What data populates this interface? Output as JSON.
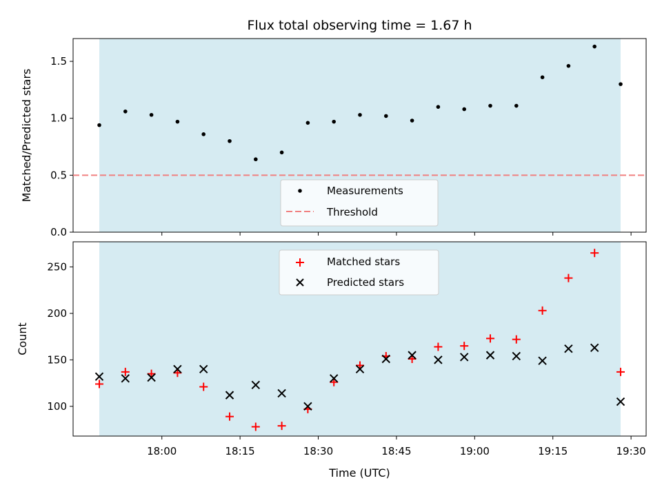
{
  "chart_data": {
    "title": "Flux total observing time = 1.67 h",
    "xlabel": "Time (UTC)",
    "shaded_color": "#add8e6",
    "x_ticks": [
      "18:00",
      "18:15",
      "18:30",
      "18:45",
      "19:00",
      "19:15",
      "19:30"
    ],
    "times": [
      "17:48",
      "17:53",
      "17:58",
      "18:03",
      "18:08",
      "18:13",
      "18:18",
      "18:23",
      "18:28",
      "18:33",
      "18:38",
      "18:43",
      "18:48",
      "18:53",
      "18:58",
      "19:03",
      "19:08",
      "19:13",
      "19:18",
      "19:23",
      "19:28"
    ],
    "panels": [
      {
        "type": "scatter",
        "ylabel": "Matched/Predicted stars",
        "ylim": [
          0,
          1.7
        ],
        "y_ticks": [
          "0.0",
          "0.5",
          "1.0",
          "1.5"
        ],
        "grid": false,
        "legend_position": "bottom-center",
        "series": [
          {
            "name": "Measurements",
            "marker": "dot",
            "color": "#000000",
            "values": [
              0.94,
              1.06,
              1.03,
              0.97,
              0.86,
              0.8,
              0.64,
              0.7,
              0.96,
              0.97,
              1.03,
              1.02,
              0.98,
              1.1,
              1.08,
              1.11,
              1.11,
              1.36,
              1.46,
              1.63,
              1.3
            ]
          }
        ],
        "reference_lines": [
          {
            "name": "Threshold",
            "value": 0.5,
            "style": "dashed",
            "color": "#f08080"
          }
        ]
      },
      {
        "type": "scatter",
        "ylabel": "Count",
        "ylim": [
          68,
          277
        ],
        "y_ticks": [
          "100",
          "150",
          "200",
          "250"
        ],
        "grid": false,
        "legend_position": "top-center",
        "series": [
          {
            "name": "Matched stars",
            "marker": "plus",
            "color": "#ff0000",
            "values": [
              124,
              137,
              135,
              136,
              121,
              89,
              78,
              79,
              97,
              126,
              144,
              154,
              151,
              164,
              165,
              173,
              172,
              203,
              238,
              265,
              137
            ]
          },
          {
            "name": "Predicted stars",
            "marker": "x",
            "color": "#000000",
            "values": [
              132,
              130,
              131,
              140,
              140,
              112,
              123,
              114,
              100,
              130,
              140,
              151,
              155,
              150,
              153,
              155,
              154,
              149,
              162,
              163,
              105
            ]
          }
        ]
      }
    ]
  }
}
